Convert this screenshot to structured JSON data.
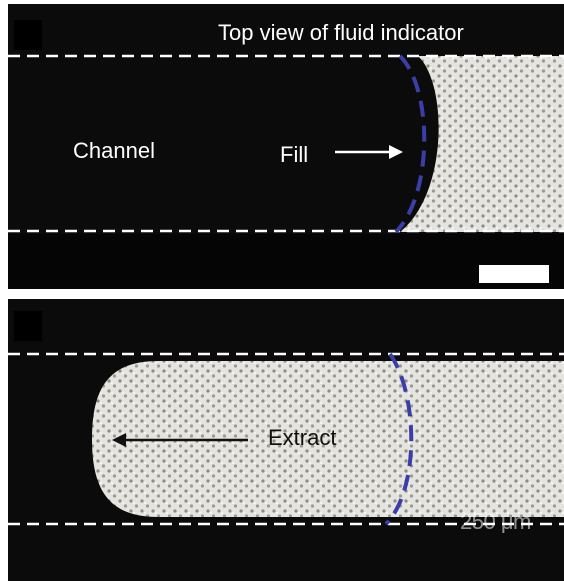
{
  "panels": {
    "top": {
      "title": "Top view of fluid indicator",
      "channel_label": "Channel",
      "fill_label": "Fill"
    },
    "bottom": {
      "extract_label": "Extract",
      "scale_bar_label": "250 μm"
    }
  },
  "colors": {
    "background": "#0b0b0b",
    "fluid": "#e9e7e2",
    "meniscus_dash": "#3a3fa8",
    "channel_edge_dash": "#ffffff",
    "arrow_fill": "#ffffff",
    "arrow_extract": "#111111"
  }
}
